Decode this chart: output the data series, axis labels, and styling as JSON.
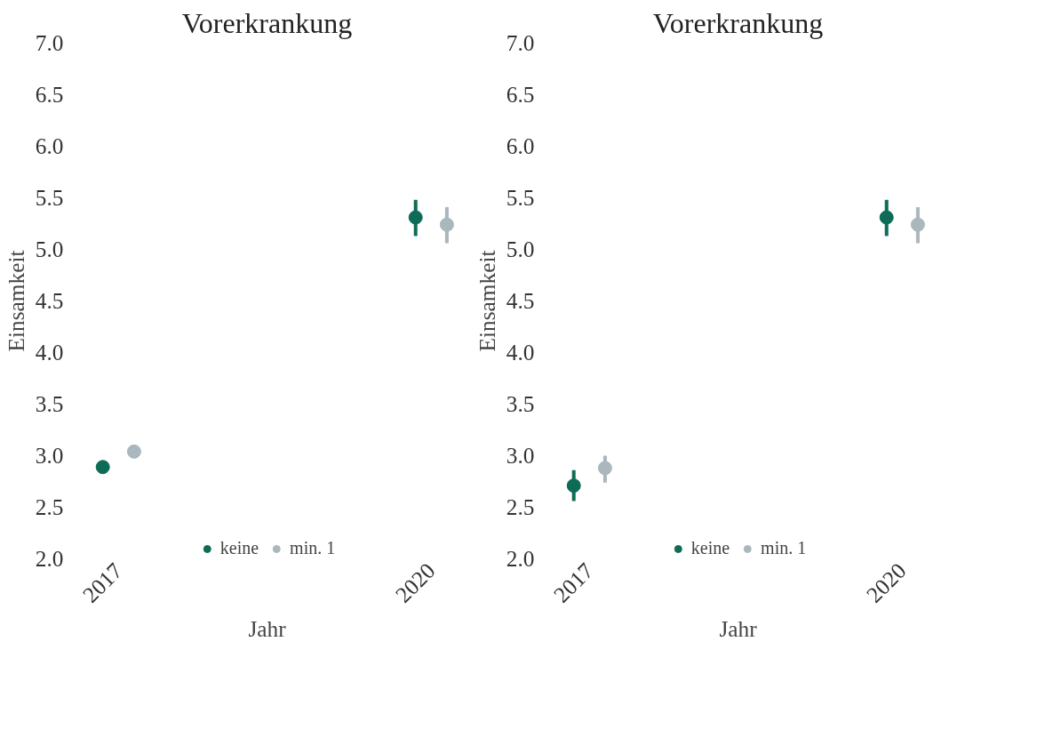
{
  "chart_data": [
    {
      "type": "scatter",
      "title": "Vorerkrankung",
      "xlabel": "Jahr",
      "ylabel": "Einsamkeit",
      "categories": [
        "2017",
        "2020"
      ],
      "ylim": [
        2.0,
        7.0
      ],
      "yticks": [
        {
          "value": 2.0,
          "label": "2.0"
        },
        2.5,
        {
          "value": 3.0,
          "label": "3.0"
        },
        3.5,
        {
          "value": 4.0,
          "label": "4.0"
        },
        4.5,
        {
          "value": 5.0,
          "label": "5.0"
        },
        5.5,
        {
          "value": 6.0,
          "label": "6.0"
        },
        6.5,
        {
          "value": 7.0,
          "label": "7.0"
        }
      ],
      "grid": false,
      "legend": "bottom",
      "marker": "circle",
      "series": [
        {
          "name": "keine",
          "color": "#0e6b55",
          "values": [
            2.89,
            5.31
          ],
          "errors": [
            null,
            [
              5.13,
              5.48
            ]
          ]
        },
        {
          "name": "min. 1",
          "color": "#aab7bd",
          "values": [
            3.04,
            5.24
          ],
          "errors": [
            null,
            [
              5.06,
              5.41
            ]
          ]
        }
      ]
    },
    {
      "type": "scatter",
      "title": "Vorerkrankung",
      "xlabel": "Jahr",
      "ylabel": "Einsamkeit",
      "categories": [
        "2017",
        "2020"
      ],
      "ylim": [
        2.0,
        7.0
      ],
      "yticks": [
        {
          "value": 2.0,
          "label": "2.0"
        },
        2.5,
        {
          "value": 3.0,
          "label": "3.0"
        },
        3.5,
        {
          "value": 4.0,
          "label": "4.0"
        },
        4.5,
        {
          "value": 5.0,
          "label": "5.0"
        },
        5.5,
        {
          "value": 6.0,
          "label": "6.0"
        },
        6.5,
        {
          "value": 7.0,
          "label": "7.0"
        }
      ],
      "grid": false,
      "legend": "bottom",
      "marker": "circle",
      "series": [
        {
          "name": "keine",
          "color": "#0e6b55",
          "values": [
            2.71,
            5.31
          ],
          "errors": [
            [
              2.56,
              2.86
            ],
            [
              5.13,
              5.48
            ]
          ]
        },
        {
          "name": "min. 1",
          "color": "#aab7bd",
          "values": [
            2.88,
            5.24
          ],
          "errors": [
            [
              2.74,
              3.0
            ],
            [
              5.06,
              5.41
            ]
          ]
        }
      ]
    }
  ]
}
